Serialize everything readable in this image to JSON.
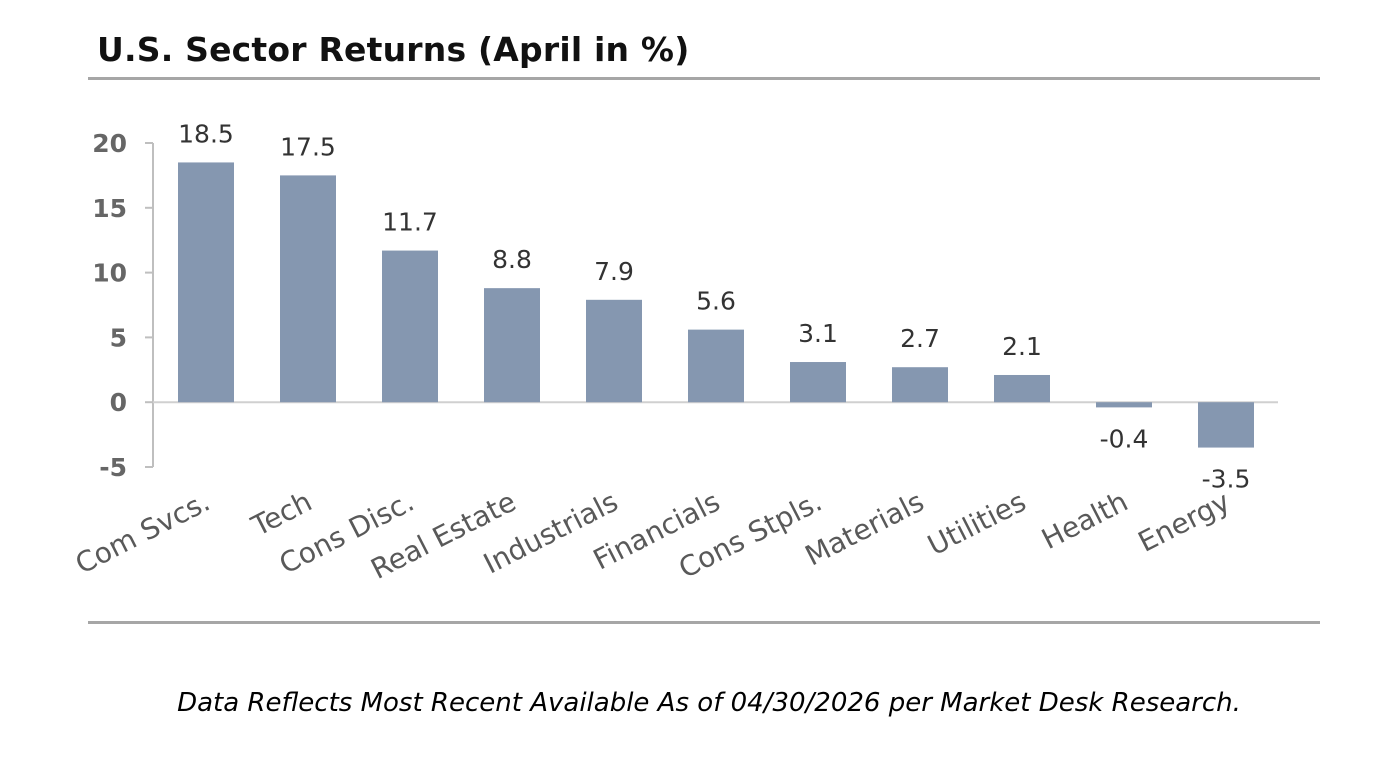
{
  "chart_data": {
    "type": "bar",
    "title": "U.S. Sector Returns (April in %)",
    "categories": [
      "Com Svcs.",
      "Tech",
      "Cons Disc.",
      "Real Estate",
      "Industrials",
      "Financials",
      "Cons Stpls.",
      "Materials",
      "Utilities",
      "Health",
      "Energy"
    ],
    "values": [
      18.5,
      17.5,
      11.7,
      8.8,
      7.9,
      5.6,
      3.1,
      2.7,
      2.1,
      -0.4,
      -3.5
    ],
    "data_labels": [
      "18.5",
      "17.5",
      "11.7",
      "8.8",
      "7.9",
      "5.6",
      "3.1",
      "2.7",
      "2.1",
      "-0.4",
      "-3.5"
    ],
    "yticks": [
      20,
      15,
      10,
      5,
      0,
      -5
    ],
    "ytick_labels": [
      "20",
      "15",
      "10",
      "5",
      "0",
      "-5"
    ],
    "ylim": [
      -5,
      20
    ],
    "xlabel": "",
    "ylabel": "",
    "grid": false,
    "legend": "none",
    "bar_color": "#8597b0"
  },
  "footnote": "Data Reflects Most Recent Available As of 04/30/2026 per Market Desk Research."
}
